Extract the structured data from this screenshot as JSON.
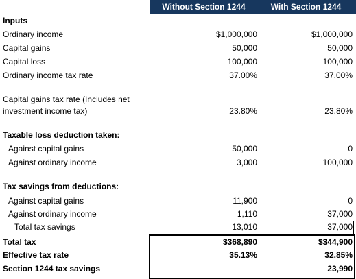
{
  "header": {
    "columns": [
      "Without Section 1244",
      "With Section 1244"
    ]
  },
  "rows": [
    {
      "label": "Inputs"
    },
    {
      "label": "Ordinary income",
      "without": "$1,000,000",
      "with": "$1,000,000"
    },
    {
      "label": "Capital gains",
      "without": "50,000",
      "with": "50,000"
    },
    {
      "label": "Capital loss",
      "without": "100,000",
      "with": "100,000"
    },
    {
      "label": "Ordinary income tax rate",
      "without": "37.00%",
      "with": "37.00%"
    },
    {
      "label": "Capital gains tax rate (Includes net",
      "label2": "investment income tax)",
      "without": "23.80%",
      "with": "23.80%"
    },
    {
      "label": "Taxable loss deduction taken:"
    },
    {
      "label": "Against capital gains",
      "without": "50,000",
      "with": "0"
    },
    {
      "label": "Against ordinary income",
      "without": "3,000",
      "with": "100,000"
    },
    {
      "label": "Tax savings from deductions:"
    },
    {
      "label": "Against capital gains",
      "without": "11,900",
      "with": "0"
    },
    {
      "label": "Against ordinary income",
      "without": "1,110",
      "with": "37,000"
    },
    {
      "label": "Total tax savings",
      "without": "13,010",
      "with": "37,000"
    },
    {
      "label": "Total tax",
      "without": "$368,890",
      "with": "$344,900"
    },
    {
      "label": "Effective tax rate",
      "without": "35.13%",
      "with": "32.85%"
    },
    {
      "label": "Section 1244 tax savings",
      "with": "23,990"
    }
  ]
}
